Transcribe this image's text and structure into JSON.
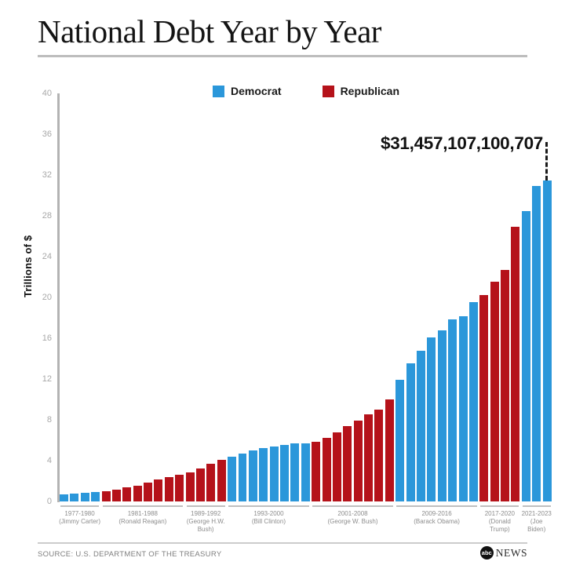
{
  "header": {
    "title": "National Debt Year by Year"
  },
  "legend": [
    {
      "label": "Democrat",
      "color": "#2B97DA"
    },
    {
      "label": "Republican",
      "color": "#B5121A"
    }
  ],
  "chart_data": {
    "type": "bar",
    "title": "National Debt Year by Year",
    "xlabel": "",
    "ylabel": "Trillions of $",
    "ylim": [
      0,
      40
    ],
    "y_ticks": [
      0,
      4,
      8,
      12,
      16,
      20,
      24,
      28,
      32,
      36,
      40
    ],
    "grid": false,
    "legend_position": "top",
    "unit": "trillions of US dollars",
    "annotation_label": "$31,457,107,100,707",
    "annotation_points_to": "final 2023 bar",
    "colors": {
      "Democrat": "#2B97DA",
      "Republican": "#B5121A"
    },
    "groups": [
      {
        "years": "1977-1980",
        "president": "Jimmy Carter",
        "party": "Democrat",
        "label_lines": [
          "1977-1980",
          "(Jimmy Carter)"
        ],
        "values": [
          0.7,
          0.77,
          0.83,
          0.91
        ]
      },
      {
        "years": "1981-1988",
        "president": "Ronald Reagan",
        "party": "Republican",
        "label_lines": [
          "1981-1988",
          "(Ronald Reagan)"
        ],
        "values": [
          1.0,
          1.14,
          1.38,
          1.57,
          1.82,
          2.13,
          2.35,
          2.6
        ]
      },
      {
        "years": "1989-1992",
        "president": "George H.W. Bush",
        "party": "Republican",
        "label_lines": [
          "1989-1992",
          "(George H.W.",
          "Bush)"
        ],
        "values": [
          2.86,
          3.23,
          3.67,
          4.06
        ]
      },
      {
        "years": "1993-2000",
        "president": "Bill Clinton",
        "party": "Democrat",
        "label_lines": [
          "1993-2000",
          "(Bill Clinton)"
        ],
        "values": [
          4.41,
          4.69,
          4.97,
          5.22,
          5.41,
          5.53,
          5.66,
          5.67
        ]
      },
      {
        "years": "2001-2008",
        "president": "George W. Bush",
        "party": "Republican",
        "label_lines": [
          "2001-2008",
          "(George W. Bush)"
        ],
        "values": [
          5.81,
          6.23,
          6.78,
          7.38,
          7.93,
          8.51,
          9.01,
          10.02
        ]
      },
      {
        "years": "2009-2016",
        "president": "Barack Obama",
        "party": "Democrat",
        "label_lines": [
          "2009-2016",
          "(Barack Obama)"
        ],
        "values": [
          11.91,
          13.56,
          14.79,
          16.07,
          16.74,
          17.82,
          18.15,
          19.57
        ]
      },
      {
        "years": "2017-2020",
        "president": "Donald Trump",
        "party": "Republican",
        "label_lines": [
          "2017-2020",
          "(Donald",
          "Trump)"
        ],
        "values": [
          20.24,
          21.52,
          22.72,
          26.95
        ]
      },
      {
        "years": "2021-2023",
        "president": "Joe Biden",
        "party": "Democrat",
        "label_lines": [
          "2021-2023",
          "(Joe",
          "Biden)"
        ],
        "values": [
          28.43,
          30.93,
          31.46
        ]
      }
    ]
  },
  "footer": {
    "source": "SOURCE: U.S. DEPARTMENT OF THE TREASURY",
    "logo_abc": "abc",
    "logo_news": "NEWS"
  }
}
